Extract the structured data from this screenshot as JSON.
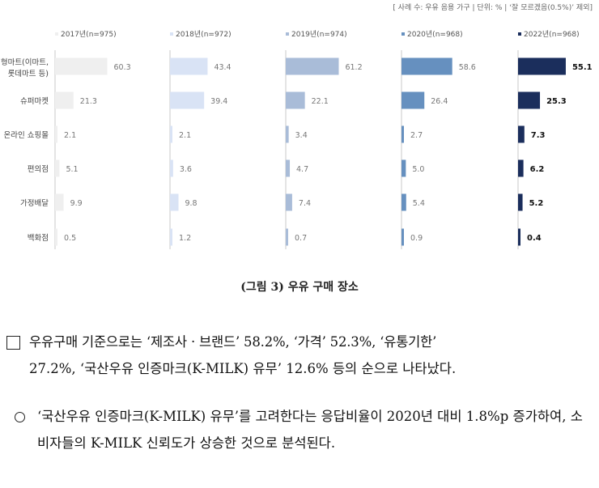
{
  "note": "[ 사례 수: 우유 음용 가구 | 단위: % | ‘잘 모르겠음(0.5%)’ 제외]",
  "chart_data": {
    "type": "bar",
    "orientation": "horizontal",
    "categories": [
      "대형마트(이마트, 롯데마트 등)",
      "슈퍼마켓",
      "온라인 쇼핑몰",
      "편의점",
      "가정배달",
      "백화점"
    ],
    "category_lines": [
      [
        "대형마트(이마트,",
        "롯데마트 등)"
      ],
      [
        "슈퍼마켓"
      ],
      [
        "온라인 쇼핑몰"
      ],
      [
        "편의점"
      ],
      [
        "가정배달"
      ],
      [
        "백화점"
      ]
    ],
    "series": [
      {
        "name": "2017년(n=975)",
        "values": [
          60.3,
          21.3,
          2.1,
          5.1,
          9.9,
          0.5
        ],
        "labels": [
          "60.3",
          "21.3",
          "2.1",
          "5.1",
          "9.9",
          "0.5"
        ],
        "color": "#efefef"
      },
      {
        "name": "2018년(n=972)",
        "values": [
          43.4,
          39.4,
          2.1,
          3.6,
          9.8,
          1.2
        ],
        "labels": [
          "43.4",
          "39.4",
          "2.1",
          "3.6",
          "9.8",
          "1.2"
        ],
        "color": "#d9e3f5"
      },
      {
        "name": "2019년(n=974)",
        "values": [
          61.2,
          22.1,
          3.4,
          4.7,
          7.4,
          0.7
        ],
        "labels": [
          "61.2",
          "22.1",
          "3.4",
          "4.7",
          "7.4",
          "0.7"
        ],
        "color": "#a9bcd8"
      },
      {
        "name": "2020년(n=968)",
        "values": [
          58.6,
          26.4,
          2.7,
          5.0,
          5.4,
          0.9
        ],
        "labels": [
          "58.6",
          "26.4",
          "2.7",
          "5.0",
          "5.4",
          "0.9"
        ],
        "color": "#6690bf"
      },
      {
        "name": "2022년(n=968)",
        "values": [
          55.1,
          25.3,
          7.3,
          6.2,
          5.2,
          0.4
        ],
        "labels": [
          "55.1",
          "25.3",
          "7.3",
          "6.2",
          "5.2",
          "0.4"
        ],
        "color": "#1b2e5c",
        "bold_labels": true
      }
    ],
    "grid": false
  },
  "caption": "(그림 3) 우유 구매 장소",
  "paragraphs": {
    "p1_line1": "우유구매 기준으로는 ‘제조사 · 브랜드’ 58.2%, ‘가격’ 52.3%, ‘유통기한’",
    "p1_line2": "27.2%, ‘국산우유 인증마크(K-MILK) 유무’ 12.6% 등의 순으로 나타났다.",
    "p2": "‘국산우유 인증마크(K-MILK) 유무’를 고려한다는 응답비율이 2020년 대비 1.8%p 증가하여, 소비자들의 K-MILK 신뢰도가 상승한 것으로 분석된다."
  }
}
